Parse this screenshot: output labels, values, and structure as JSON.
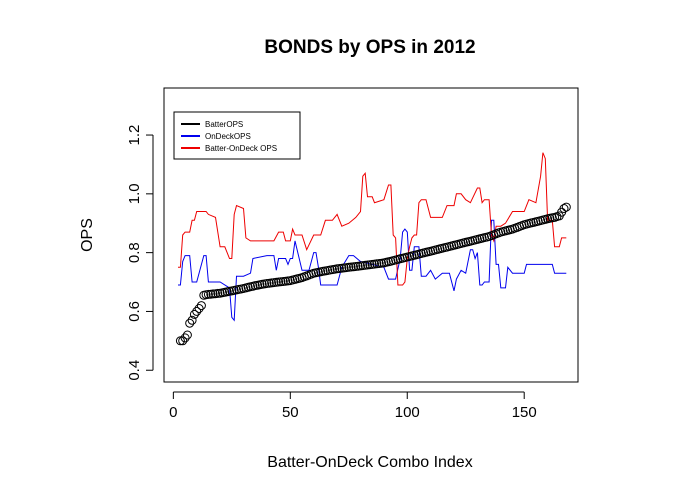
{
  "chart_data": {
    "type": "line",
    "title": "BONDS by OPS in 2012",
    "xlabel": "Batter-OnDeck Combo Index",
    "ylabel": "OPS",
    "xlim": [
      -4,
      173
    ],
    "ylim": [
      0.36,
      1.36
    ],
    "xticks": [
      0,
      50,
      100,
      150
    ],
    "yticks": [
      0.4,
      0.6,
      0.8,
      1.0,
      1.2
    ],
    "ytick_labels": [
      "0.4",
      "0.6",
      "0.8",
      "1.0",
      "1.2"
    ],
    "legend_position": "top-left",
    "series": [
      {
        "name": "BatterOPS",
        "color": "#000000",
        "style": "points",
        "values": [
          [
            3,
            0.5
          ],
          [
            4,
            0.5
          ],
          [
            5,
            0.51
          ],
          [
            6,
            0.52
          ],
          [
            7,
            0.56
          ],
          [
            8,
            0.57
          ],
          [
            9,
            0.59
          ],
          [
            10,
            0.6
          ],
          [
            11,
            0.61
          ],
          [
            12,
            0.62
          ],
          [
            13,
            0.655
          ],
          [
            14,
            0.657
          ],
          [
            15,
            0.658
          ],
          [
            20,
            0.662
          ],
          [
            25,
            0.67
          ],
          [
            30,
            0.678
          ],
          [
            35,
            0.688
          ],
          [
            40,
            0.695
          ],
          [
            45,
            0.7
          ],
          [
            50,
            0.705
          ],
          [
            55,
            0.715
          ],
          [
            60,
            0.73
          ],
          [
            65,
            0.738
          ],
          [
            70,
            0.745
          ],
          [
            75,
            0.75
          ],
          [
            80,
            0.755
          ],
          [
            85,
            0.76
          ],
          [
            90,
            0.765
          ],
          [
            95,
            0.775
          ],
          [
            100,
            0.785
          ],
          [
            105,
            0.795
          ],
          [
            110,
            0.805
          ],
          [
            115,
            0.815
          ],
          [
            120,
            0.825
          ],
          [
            125,
            0.835
          ],
          [
            130,
            0.845
          ],
          [
            135,
            0.855
          ],
          [
            140,
            0.87
          ],
          [
            145,
            0.88
          ],
          [
            150,
            0.895
          ],
          [
            155,
            0.905
          ],
          [
            160,
            0.915
          ],
          [
            163,
            0.92
          ],
          [
            165,
            0.925
          ],
          [
            167,
            0.95
          ],
          [
            168,
            0.955
          ]
        ]
      },
      {
        "name": "OnDeckOPS",
        "color": "#0000ee",
        "style": "line",
        "values": [
          [
            2,
            0.69
          ],
          [
            3,
            0.69
          ],
          [
            4,
            0.77
          ],
          [
            5,
            0.79
          ],
          [
            7,
            0.79
          ],
          [
            8,
            0.7
          ],
          [
            10,
            0.7
          ],
          [
            13,
            0.79
          ],
          [
            14,
            0.79
          ],
          [
            15,
            0.7
          ],
          [
            20,
            0.7
          ],
          [
            24,
            0.68
          ],
          [
            25,
            0.58
          ],
          [
            26,
            0.57
          ],
          [
            27,
            0.72
          ],
          [
            30,
            0.72
          ],
          [
            33,
            0.73
          ],
          [
            34,
            0.78
          ],
          [
            40,
            0.79
          ],
          [
            43,
            0.79
          ],
          [
            44,
            0.74
          ],
          [
            45,
            0.78
          ],
          [
            48,
            0.78
          ],
          [
            49,
            0.76
          ],
          [
            50,
            0.78
          ],
          [
            51,
            0.78
          ],
          [
            52,
            0.84
          ],
          [
            55,
            0.74
          ],
          [
            58,
            0.74
          ],
          [
            60,
            0.8
          ],
          [
            61,
            0.8
          ],
          [
            62,
            0.75
          ],
          [
            63,
            0.69
          ],
          [
            70,
            0.69
          ],
          [
            72,
            0.75
          ],
          [
            75,
            0.79
          ],
          [
            77,
            0.79
          ],
          [
            80,
            0.77
          ],
          [
            85,
            0.76
          ],
          [
            90,
            0.75
          ],
          [
            92,
            0.71
          ],
          [
            95,
            0.71
          ],
          [
            97,
            0.78
          ],
          [
            98,
            0.87
          ],
          [
            99,
            0.88
          ],
          [
            100,
            0.87
          ],
          [
            101,
            0.74
          ],
          [
            102,
            0.74
          ],
          [
            103,
            0.82
          ],
          [
            105,
            0.82
          ],
          [
            106,
            0.72
          ],
          [
            108,
            0.72
          ],
          [
            110,
            0.74
          ],
          [
            112,
            0.71
          ],
          [
            115,
            0.73
          ],
          [
            118,
            0.73
          ],
          [
            120,
            0.67
          ],
          [
            121,
            0.71
          ],
          [
            123,
            0.74
          ],
          [
            125,
            0.73
          ],
          [
            127,
            0.81
          ],
          [
            128,
            0.81
          ],
          [
            129,
            0.78
          ],
          [
            130,
            0.8
          ],
          [
            131,
            0.69
          ],
          [
            132,
            0.69
          ],
          [
            133,
            0.7
          ],
          [
            135,
            0.7
          ],
          [
            136,
            0.91
          ],
          [
            137,
            0.91
          ],
          [
            138,
            0.76
          ],
          [
            139,
            0.76
          ],
          [
            140,
            0.68
          ],
          [
            142,
            0.68
          ],
          [
            143,
            0.75
          ],
          [
            145,
            0.73
          ],
          [
            150,
            0.73
          ],
          [
            151,
            0.76
          ],
          [
            155,
            0.76
          ],
          [
            160,
            0.76
          ],
          [
            162,
            0.76
          ],
          [
            163,
            0.73
          ],
          [
            165,
            0.73
          ],
          [
            168,
            0.73
          ]
        ]
      },
      {
        "name": "Batter-OnDeck OPS",
        "color": "#ee0000",
        "style": "line",
        "values": [
          [
            2,
            0.75
          ],
          [
            3,
            0.75
          ],
          [
            4,
            0.86
          ],
          [
            5,
            0.87
          ],
          [
            7,
            0.87
          ],
          [
            8,
            0.91
          ],
          [
            9,
            0.91
          ],
          [
            10,
            0.94
          ],
          [
            14,
            0.94
          ],
          [
            15,
            0.93
          ],
          [
            18,
            0.92
          ],
          [
            20,
            0.82
          ],
          [
            22,
            0.82
          ],
          [
            24,
            0.78
          ],
          [
            25,
            0.78
          ],
          [
            26,
            0.93
          ],
          [
            27,
            0.96
          ],
          [
            30,
            0.95
          ],
          [
            31,
            0.85
          ],
          [
            33,
            0.84
          ],
          [
            34,
            0.84
          ],
          [
            35,
            0.84
          ],
          [
            40,
            0.84
          ],
          [
            43,
            0.84
          ],
          [
            45,
            0.87
          ],
          [
            47,
            0.87
          ],
          [
            48,
            0.84
          ],
          [
            50,
            0.84
          ],
          [
            51,
            0.88
          ],
          [
            52,
            0.86
          ],
          [
            55,
            0.86
          ],
          [
            57,
            0.81
          ],
          [
            60,
            0.86
          ],
          [
            63,
            0.86
          ],
          [
            65,
            0.91
          ],
          [
            68,
            0.91
          ],
          [
            70,
            0.93
          ],
          [
            72,
            0.89
          ],
          [
            75,
            0.9
          ],
          [
            78,
            0.92
          ],
          [
            80,
            0.94
          ],
          [
            81,
            1.06
          ],
          [
            82,
            1.07
          ],
          [
            83,
            0.99
          ],
          [
            85,
            0.99
          ],
          [
            86,
            0.97
          ],
          [
            90,
            0.98
          ],
          [
            92,
            1.03
          ],
          [
            93,
            1.03
          ],
          [
            94,
            0.86
          ],
          [
            95,
            0.85
          ],
          [
            96,
            0.69
          ],
          [
            98,
            0.69
          ],
          [
            99,
            0.7
          ],
          [
            100,
            0.78
          ],
          [
            101,
            0.82
          ],
          [
            102,
            0.85
          ],
          [
            103,
            0.86
          ],
          [
            104,
            0.86
          ],
          [
            105,
            0.97
          ],
          [
            106,
            0.98
          ],
          [
            108,
            0.98
          ],
          [
            110,
            0.92
          ],
          [
            115,
            0.92
          ],
          [
            117,
            0.96
          ],
          [
            120,
            0.96
          ],
          [
            121,
            1.0
          ],
          [
            123,
            1.0
          ],
          [
            125,
            0.98
          ],
          [
            127,
            0.97
          ],
          [
            130,
            1.02
          ],
          [
            131,
            1.02
          ],
          [
            132,
            0.97
          ],
          [
            133,
            0.98
          ],
          [
            135,
            0.98
          ],
          [
            136,
            0.86
          ],
          [
            137,
            0.84
          ],
          [
            138,
            0.89
          ],
          [
            140,
            0.89
          ],
          [
            142,
            0.9
          ],
          [
            145,
            0.94
          ],
          [
            150,
            0.94
          ],
          [
            152,
            0.98
          ],
          [
            155,
            0.97
          ],
          [
            157,
            1.06
          ],
          [
            158,
            1.14
          ],
          [
            159,
            1.12
          ],
          [
            160,
            0.91
          ],
          [
            162,
            0.91
          ],
          [
            163,
            0.82
          ],
          [
            165,
            0.82
          ],
          [
            166,
            0.85
          ],
          [
            168,
            0.85
          ]
        ]
      }
    ]
  }
}
